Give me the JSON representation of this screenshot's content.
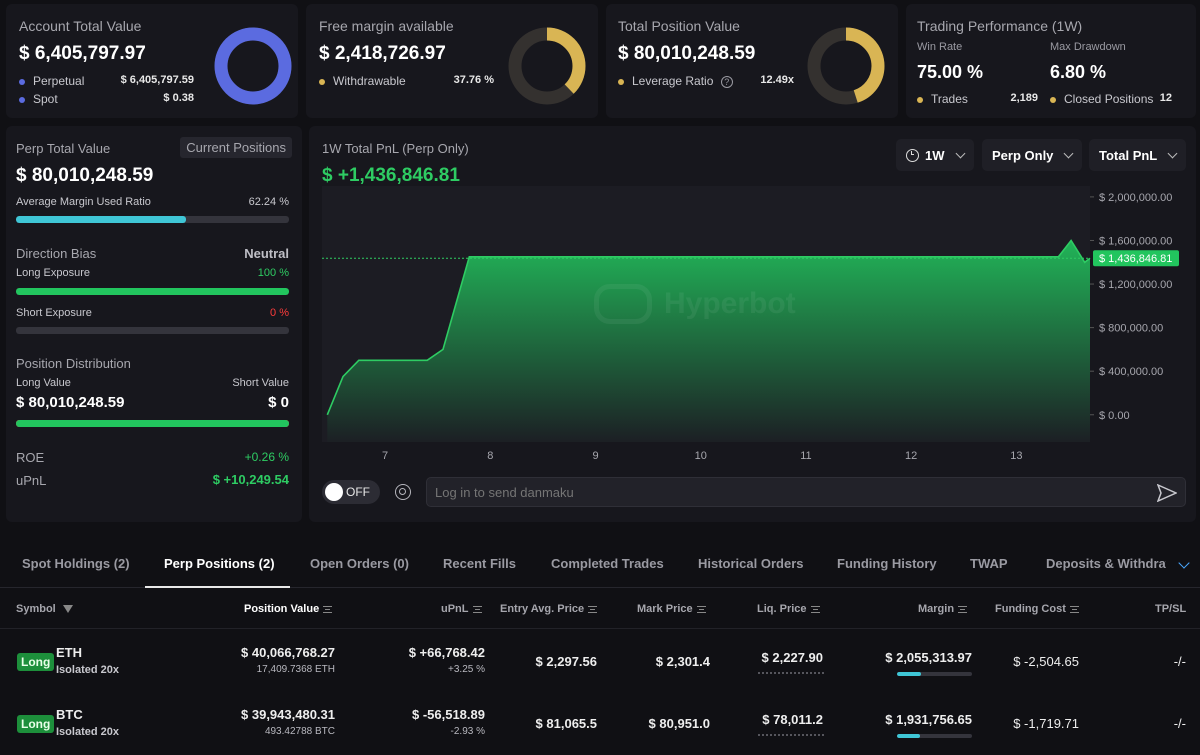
{
  "summary": {
    "account": {
      "label": "Account Total Value",
      "value": "$ 6,405,797.97",
      "rows": [
        {
          "name": "Perpetual",
          "value": "$ 6,405,797.59"
        },
        {
          "name": "Spot",
          "value": "$ 0.38"
        }
      ],
      "donut_fraction": 1.0,
      "color": "#5b6be0"
    },
    "margin": {
      "label": "Free margin available",
      "value": "$ 2,418,726.97",
      "rows": [
        {
          "name": "Withdrawable",
          "value": "37.76 %"
        }
      ],
      "donut_fraction": 0.3776,
      "color": "#d9b554"
    },
    "position": {
      "label": "Total Position Value",
      "value": "$ 80,010,248.59",
      "rows": [
        {
          "name": "Leverage Ratio",
          "value": "12.49x"
        }
      ],
      "donut_fraction": 0.45,
      "color": "#d9b554"
    },
    "performance": {
      "label": "Trading Performance (1W)",
      "win_rate_label": "Win Rate",
      "win_rate": "75.00 %",
      "drawdown_label": "Max Drawdown",
      "drawdown": "6.80 %",
      "trades_label": "Trades",
      "trades": "2,189",
      "closed_label": "Closed Positions",
      "closed": "12"
    }
  },
  "perp": {
    "title": "Perp Total Value",
    "current_positions_button": "Current Positions",
    "value": "$ 80,010,248.59",
    "margin_used_label": "Average Margin Used Ratio",
    "margin_used": "62.24 %",
    "margin_used_fraction": 0.6224,
    "direction_label": "Direction Bias",
    "direction": "Neutral",
    "long_label": "Long Exposure",
    "long_pct": "100 %",
    "long_fraction": 1.0,
    "short_label": "Short Exposure",
    "short_pct": "0 %",
    "short_fraction": 0.0,
    "distribution_label": "Position Distribution",
    "long_value_label": "Long Value",
    "short_value_label": "Short Value",
    "long_value": "$ 80,010,248.59",
    "short_value": "$ 0",
    "distribution_fraction": 1.0,
    "roe_label": "ROE",
    "roe": "+0.26 %",
    "upnl_label": "uPnL",
    "upnl": "$ +10,249.54"
  },
  "chart_panel": {
    "title": "1W Total PnL (Perp Only)",
    "value": "$ +1,436,846.81",
    "range_select": "1W",
    "scope_select": "Perp Only",
    "metric_select": "Total PnL",
    "toggle_label": "OFF",
    "danmaku_placeholder": "Log in to send danmaku",
    "watermark": "Hyperbot"
  },
  "chart_data": {
    "type": "area",
    "title": "1W Total PnL (Perp Only)",
    "x_ticks": [
      "7",
      "8",
      "9",
      "10",
      "11",
      "12",
      "13"
    ],
    "x_tick_values": [
      7,
      8,
      9,
      10,
      11,
      12,
      13
    ],
    "y_ticks": [
      "$ 2,000,000.00",
      "$ 1,600,000.00",
      "$ 1,200,000.00",
      "$ 800,000.00",
      "$ 400,000.00",
      "$ 0.00"
    ],
    "y_tick_values": [
      2000000,
      1600000,
      1200000,
      800000,
      400000,
      0
    ],
    "xlim": [
      6.4,
      13.7
    ],
    "ylim": [
      -250000,
      2100000
    ],
    "current_label": "$ 1,436,846.81",
    "current_value": 1436846.81,
    "series": [
      {
        "values": [
          [
            6.45,
            0
          ],
          [
            6.6,
            350000
          ],
          [
            6.75,
            500000
          ],
          [
            7.4,
            500000
          ],
          [
            7.55,
            600000
          ],
          [
            7.8,
            1450000
          ],
          [
            13.4,
            1450000
          ],
          [
            13.52,
            1600000
          ],
          [
            13.65,
            1400000
          ],
          [
            13.7,
            1436846.81
          ]
        ]
      }
    ],
    "grid": false,
    "line_color": "#2ecc63"
  },
  "tabs": [
    {
      "label": "Spot Holdings (2)"
    },
    {
      "label": "Perp Positions (2)",
      "active": true
    },
    {
      "label": "Open Orders (0)"
    },
    {
      "label": "Recent Fills"
    },
    {
      "label": "Completed Trades"
    },
    {
      "label": "Historical Orders"
    },
    {
      "label": "Funding History"
    },
    {
      "label": "TWAP"
    },
    {
      "label": "Deposits & Withdraw"
    }
  ],
  "table": {
    "headers": {
      "symbol": "Symbol",
      "position_value": "Position Value",
      "upnl": "uPnL",
      "entry": "Entry Avg. Price",
      "mark": "Mark Price",
      "liq": "Liq. Price",
      "margin": "Margin",
      "funding": "Funding Cost",
      "tpsl": "TP/SL"
    },
    "rows": [
      {
        "side": "Long",
        "symbol": "ETH",
        "mode": "Isolated 20x",
        "position_value": "$ 40,066,768.27",
        "position_size": "17,409.7368 ETH",
        "upnl": "$ +66,768.42",
        "upnl_pct": "+3.25 %",
        "upnl_positive": true,
        "entry": "$ 2,297.56",
        "mark": "$ 2,301.4",
        "liq": "$ 2,227.90",
        "margin": "$ 2,055,313.97",
        "margin_fraction": 0.32,
        "funding": "$ -2,504.65",
        "tpsl": "-/-"
      },
      {
        "side": "Long",
        "symbol": "BTC",
        "mode": "Isolated 20x",
        "position_value": "$ 39,943,480.31",
        "position_size": "493.42788 BTC",
        "upnl": "$ -56,518.89",
        "upnl_pct": "-2.93 %",
        "upnl_positive": false,
        "entry": "$ 81,065.5",
        "mark": "$ 80,951.0",
        "liq": "$ 78,011.2",
        "margin": "$ 1,931,756.65",
        "margin_fraction": 0.3,
        "funding": "$ -1,719.71",
        "tpsl": "-/-"
      }
    ]
  }
}
